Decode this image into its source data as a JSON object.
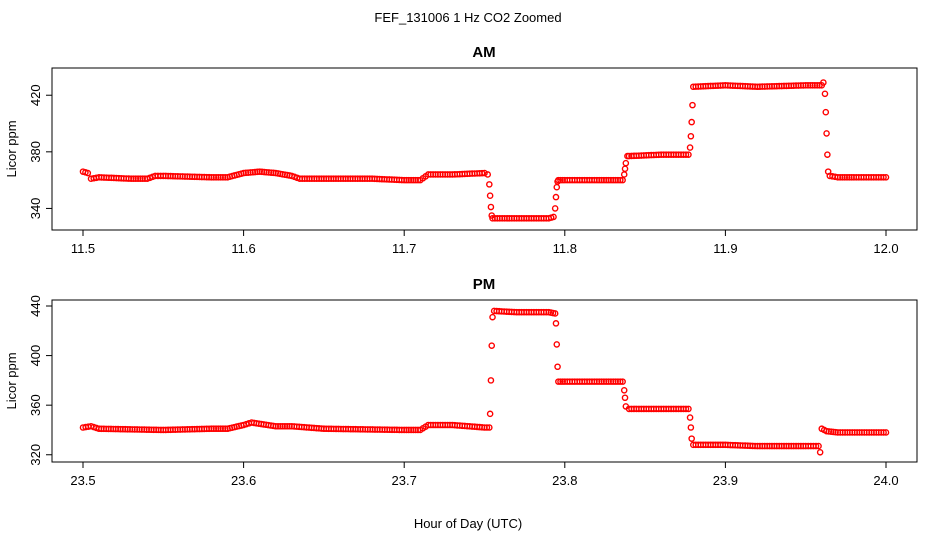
{
  "figure": {
    "title": "FEF_131006  1 Hz CO2 Zoomed",
    "xlabel": "Hour of Day (UTC)"
  },
  "chart_data": [
    {
      "type": "scatter",
      "title": "AM",
      "ylabel": "Licor ppm",
      "xlim": [
        11.5,
        12.0
      ],
      "ylim": [
        329,
        435
      ],
      "xticks": [
        "11.5",
        "11.6",
        "11.7",
        "11.8",
        "11.9",
        "12.0"
      ],
      "yticks": [
        "340",
        "380",
        "420"
      ],
      "grid": false,
      "marker_color": "#ff0000",
      "series": [
        {
          "x": [
            11.5,
            11.503,
            11.505,
            11.51,
            11.53,
            11.54,
            11.545,
            11.55,
            11.58,
            11.59,
            11.6,
            11.61,
            11.62,
            11.63,
            11.635,
            11.65,
            11.68,
            11.7,
            11.71,
            11.715,
            11.73,
            11.75,
            11.752,
            11.753,
            11.7535,
            11.754,
            11.7545,
            11.755,
            11.77,
            11.79,
            11.793,
            11.794,
            11.7945,
            11.795,
            11.7955,
            11.796,
            11.8,
            11.82,
            11.836,
            11.837,
            11.8375,
            11.838,
            11.839,
            11.84,
            11.86,
            11.877,
            11.878,
            11.8785,
            11.879,
            11.8795,
            11.88,
            11.9,
            11.92,
            11.95,
            11.96,
            11.961,
            11.962,
            11.9625,
            11.963,
            11.9635,
            11.964,
            11.965,
            11.97,
            11.98,
            12.0
          ],
          "y": [
            366,
            365,
            361,
            362,
            361,
            361,
            363,
            363,
            362,
            362,
            365,
            366,
            365,
            363,
            361,
            361,
            361,
            360,
            360,
            364,
            364,
            365,
            364,
            357,
            349,
            341,
            335,
            333,
            333,
            333,
            334,
            340,
            348,
            355,
            359,
            360,
            360,
            360,
            360,
            364,
            368,
            372,
            377,
            377,
            378,
            378,
            383,
            391,
            401,
            413,
            426,
            427,
            426,
            427,
            427,
            429,
            421,
            408,
            393,
            378,
            366,
            363,
            362,
            362,
            362
          ]
        }
      ]
    },
    {
      "type": "scatter",
      "title": "PM",
      "ylabel": "Licor ppm",
      "xlim": [
        23.5,
        24.0
      ],
      "ylim": [
        319,
        440
      ],
      "xticks": [
        "23.5",
        "23.6",
        "23.7",
        "23.8",
        "23.9",
        "24.0"
      ],
      "yticks": [
        "320",
        "360",
        "400",
        "440"
      ],
      "grid": false,
      "marker_color": "#ff0000",
      "series": [
        {
          "x": [
            23.5,
            23.505,
            23.51,
            23.55,
            23.58,
            23.59,
            23.6,
            23.605,
            23.62,
            23.63,
            23.65,
            23.7,
            23.71,
            23.715,
            23.73,
            23.75,
            23.753,
            23.7535,
            23.754,
            23.7545,
            23.755,
            23.756,
            23.77,
            23.79,
            23.794,
            23.7945,
            23.795,
            23.7955,
            23.796,
            23.8,
            23.82,
            23.836,
            23.837,
            23.8375,
            23.838,
            23.84,
            23.86,
            23.877,
            23.878,
            23.8785,
            23.879,
            23.88,
            23.9,
            23.92,
            23.95,
            23.958,
            23.959,
            23.96,
            23.963,
            23.97,
            24.0
          ],
          "y": [
            342,
            343,
            341,
            340,
            341,
            341,
            344,
            346,
            343,
            343,
            341,
            340,
            340,
            344,
            344,
            342,
            342,
            353,
            380,
            408,
            431,
            436,
            435,
            435,
            434,
            426,
            409,
            391,
            379,
            379,
            379,
            379,
            372,
            366,
            359,
            357,
            357,
            357,
            350,
            342,
            333,
            328,
            328,
            327,
            327,
            327,
            322,
            341,
            339,
            338,
            338
          ]
        }
      ]
    }
  ]
}
